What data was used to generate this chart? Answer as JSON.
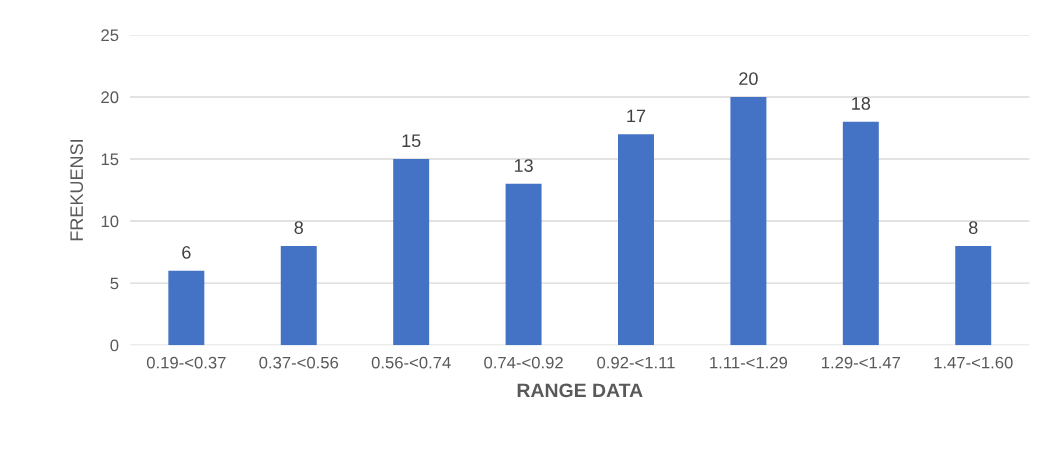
{
  "chart_data": {
    "type": "bar",
    "xlabel": "RANGE DATA",
    "ylabel": "FREKUENSI",
    "categories": [
      "0.19-<0.37",
      "0.37-<0.56",
      "0.56-<0.74",
      "0.74-<0.92",
      "0.92-<1.11",
      "1.11-<1.29",
      "1.29-<1.47",
      "1.47-<1.60"
    ],
    "values": [
      6,
      8,
      15,
      13,
      17,
      20,
      18,
      8
    ],
    "color": "#4472c4",
    "ylim": [
      0,
      25
    ],
    "yticks": [
      0,
      5,
      10,
      15,
      20,
      25
    ],
    "grid": "y",
    "data_labels": true
  }
}
